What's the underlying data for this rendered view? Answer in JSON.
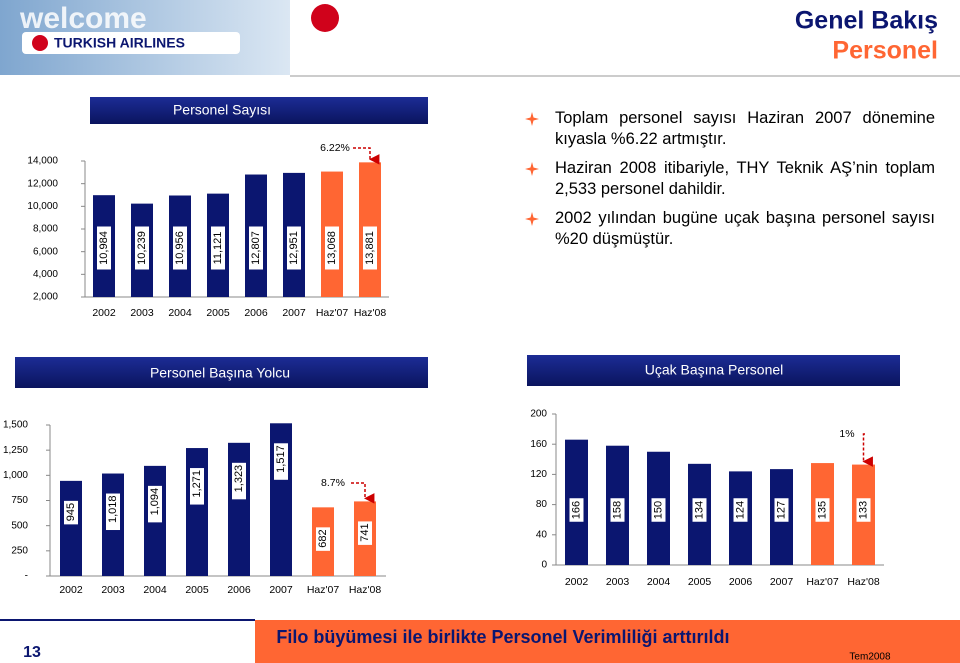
{
  "header": {
    "logo_welcome": "welcome",
    "logo_airline": "TURKISH AIRLINES",
    "title": "Genel Bakış",
    "subtitle": "Personel"
  },
  "bullets": [
    "Toplam personel sayısı Haziran 2007 dönemine kıyasla %6.22 artmıştır.",
    "Haziran 2008 itibariyle, THY Teknik AŞ’nin toplam 2,533 personel dahildir.",
    "2002 yılından bugüne uçak başına personel sayısı %20 düşmüştür."
  ],
  "footer": {
    "page_number": "13",
    "message": "Filo büyümesi ile birlikte Personel Verimliliği arttırıldı",
    "date": "Tem2008"
  },
  "chart_data": [
    {
      "type": "bar",
      "title": "Personel Sayısı",
      "categories": [
        "2002",
        "2003",
        "2004",
        "2005",
        "2006",
        "2007",
        "Haz'07",
        "Haz'08"
      ],
      "values": [
        10984,
        10239,
        10956,
        11121,
        12807,
        12951,
        13068,
        13881
      ],
      "value_labels": [
        "10,984",
        "10,239",
        "10,956",
        "11,121",
        "12,807",
        "12,951",
        "13,068",
        "13,881"
      ],
      "colors": [
        "#0b1670",
        "#0b1670",
        "#0b1670",
        "#0b1670",
        "#0b1670",
        "#0b1670",
        "#ff6633",
        "#ff6633"
      ],
      "ylim": [
        2000,
        14000
      ],
      "yticks": [
        {
          "value": 2000,
          "label": "2,000"
        },
        {
          "value": 4000,
          "label": "4,000"
        },
        {
          "value": 6000,
          "label": "6,000"
        },
        {
          "value": 8000,
          "label": "8,000"
        },
        {
          "value": 10000,
          "label": "10,000"
        },
        {
          "value": 12000,
          "label": "12,000"
        },
        {
          "value": 14000,
          "label": "14,000"
        }
      ],
      "annotation": "6.22%"
    },
    {
      "type": "bar",
      "title": "Personel Başına Yolcu",
      "categories": [
        "2002",
        "2003",
        "2004",
        "2005",
        "2006",
        "2007",
        "Haz'07",
        "Haz'08"
      ],
      "values": [
        945,
        1018,
        1094,
        1271,
        1323,
        1517,
        682,
        741
      ],
      "value_labels": [
        "945",
        "1,018",
        "1,094",
        "1,271",
        "1,323",
        "1,517",
        "682",
        "741"
      ],
      "colors": [
        "#0b1670",
        "#0b1670",
        "#0b1670",
        "#0b1670",
        "#0b1670",
        "#0b1670",
        "#ff6633",
        "#ff6633"
      ],
      "ylim": [
        0,
        1500
      ],
      "yticks": [
        {
          "value": 0,
          "label": "-"
        },
        250,
        500,
        750,
        {
          "value": 1000,
          "label": "1,000"
        },
        {
          "value": 1250,
          "label": "1,250"
        },
        {
          "value": 1500,
          "label": "1,500"
        }
      ],
      "annotation": "8.7%"
    },
    {
      "type": "bar",
      "title": "Uçak Başına Personel",
      "categories": [
        "2002",
        "2003",
        "2004",
        "2005",
        "2006",
        "2007",
        "Haz'07",
        "Haz'08"
      ],
      "values": [
        166,
        158,
        150,
        134,
        124,
        127,
        135,
        133
      ],
      "colors": [
        "#0b1670",
        "#0b1670",
        "#0b1670",
        "#0b1670",
        "#0b1670",
        "#0b1670",
        "#ff6633",
        "#ff6633"
      ],
      "ylim": [
        0,
        200
      ],
      "yticks": [
        0,
        40,
        80,
        120,
        160,
        200
      ],
      "annotation": "1%"
    }
  ]
}
